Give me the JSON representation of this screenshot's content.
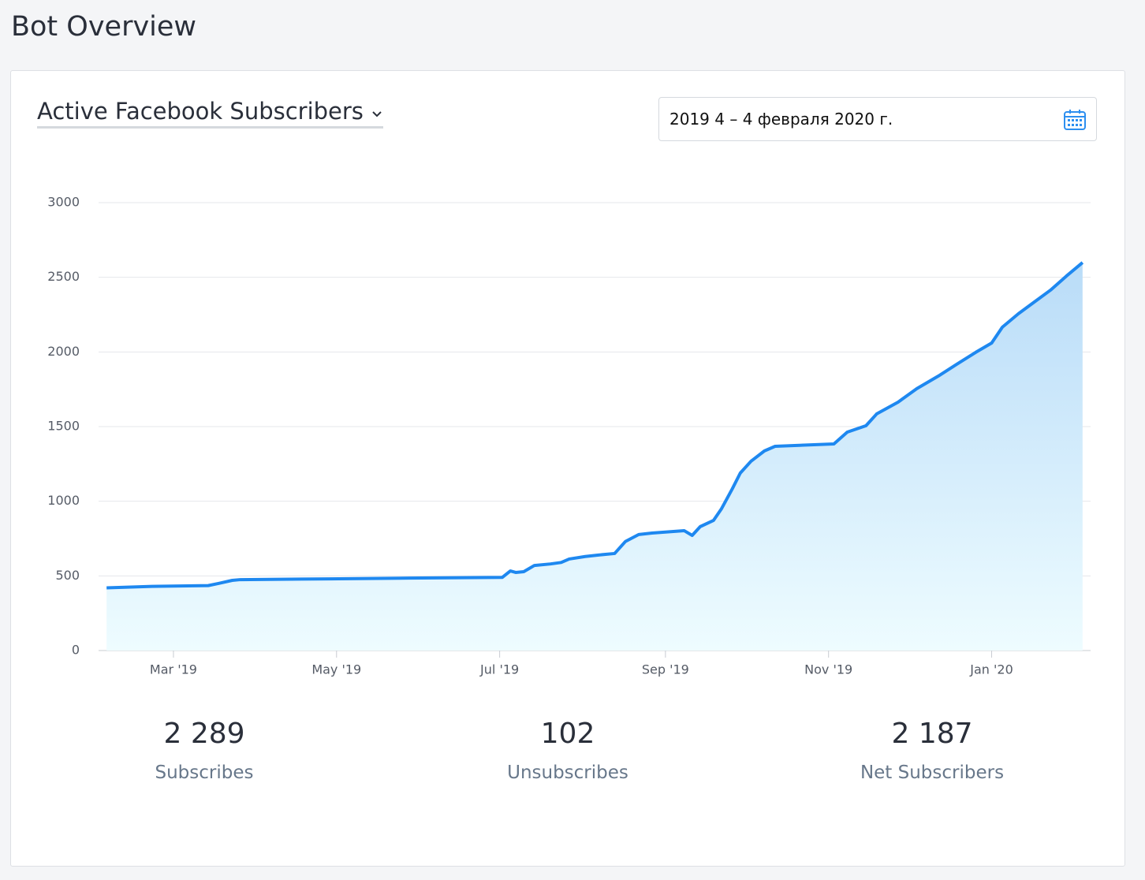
{
  "header": {
    "title": "Bot Overview"
  },
  "selector": {
    "label": "Active Facebook Subscribers"
  },
  "date_range": {
    "text": "2019 4 – 4 февраля 2020 г."
  },
  "chart_data": {
    "type": "area",
    "x": [
      "2019-02-04",
      "2019-02-21",
      "2019-03-14",
      "2019-03-18",
      "2019-03-23",
      "2019-03-26",
      "2019-04-28",
      "2019-05-28",
      "2019-07-02",
      "2019-07-05",
      "2019-07-07",
      "2019-07-10",
      "2019-07-14",
      "2019-07-20",
      "2019-07-24",
      "2019-07-27",
      "2019-08-02",
      "2019-08-07",
      "2019-08-13",
      "2019-08-17",
      "2019-08-22",
      "2019-08-27",
      "2019-09-08",
      "2019-09-11",
      "2019-09-14",
      "2019-09-19",
      "2019-09-22",
      "2019-09-26",
      "2019-09-29",
      "2019-10-03",
      "2019-10-08",
      "2019-10-12",
      "2019-11-03",
      "2019-11-08",
      "2019-11-15",
      "2019-11-19",
      "2019-11-27",
      "2019-12-04",
      "2019-12-12",
      "2019-12-19",
      "2019-12-26",
      "2020-01-01",
      "2020-01-05",
      "2020-01-11",
      "2020-01-17",
      "2020-01-23",
      "2020-01-29",
      "2020-02-04"
    ],
    "values": [
      420,
      430,
      435,
      450,
      470,
      475,
      480,
      485,
      490,
      533,
      523,
      528,
      570,
      580,
      590,
      613,
      630,
      640,
      650,
      730,
      777,
      787,
      803,
      771,
      830,
      872,
      951,
      1083,
      1189,
      1268,
      1337,
      1368,
      1384,
      1463,
      1506,
      1585,
      1664,
      1754,
      1838,
      1918,
      1997,
      2060,
      2166,
      2256,
      2335,
      2414,
      2509,
      2599
    ],
    "color": "#1e88f0",
    "xlim": [
      "2019-02-01",
      "2020-02-07"
    ],
    "xticks": [
      {
        "value": "2019-03-01",
        "label": "Mar '19"
      },
      {
        "value": "2019-05-01",
        "label": "May '19"
      },
      {
        "value": "2019-07-01",
        "label": "Jul '19"
      },
      {
        "value": "2019-09-01",
        "label": "Sep '19"
      },
      {
        "value": "2019-11-01",
        "label": "Nov '19"
      },
      {
        "value": "2020-01-01",
        "label": "Jan '20"
      }
    ],
    "ylim": [
      0,
      3000
    ],
    "yticks": [
      0,
      500,
      1000,
      1500,
      2000,
      2500,
      3000
    ],
    "grid": true
  },
  "stats": [
    {
      "value": "2 289",
      "label": "Subscribes"
    },
    {
      "value": "102",
      "label": "Unsubscribes"
    },
    {
      "value": "2 187",
      "label": "Net Subscribers"
    }
  ]
}
